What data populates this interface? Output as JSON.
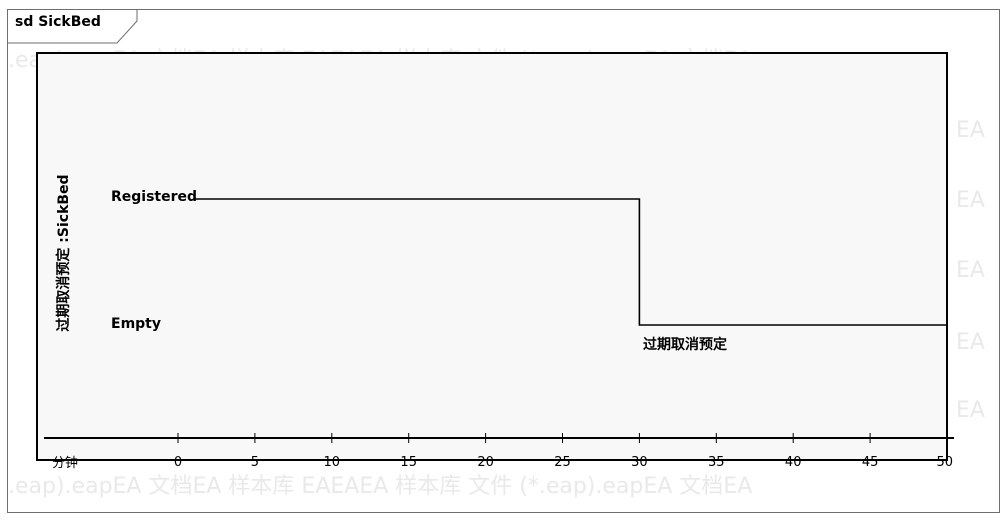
{
  "diagram": {
    "frame_label": "sd SickBed",
    "lifeline": "过期取消预定 :SickBed",
    "states": [
      "Registered",
      "Empty"
    ],
    "event_label": "过期取消预定",
    "unit": "分钟",
    "watermark": [
      ".eap).eapEA 文档EA 样本库  EAEAEA 样本库 文件 (*.eap).eapEA 文档EA",
      ".eap).eapEA 文档EA 样本库  EAEAEA 样本库 文件 (*.eap).eapEA 文档EA",
      "EA"
    ]
  },
  "chart_data": {
    "type": "line",
    "title": "",
    "xlabel": "分钟",
    "ylabel": "",
    "xlim": [
      0,
      50
    ],
    "x_ticks": [
      "0",
      "5",
      "10",
      "15",
      "20",
      "25",
      "30",
      "35",
      "40",
      "45",
      "50"
    ],
    "y_categories": [
      "Registered",
      "Empty"
    ],
    "series": [
      {
        "x": [
          0,
          30,
          30,
          50
        ],
        "y": [
          "Registered",
          "Registered",
          "Empty",
          "Empty"
        ]
      }
    ],
    "annotations": [
      {
        "x": 30,
        "y": "Empty",
        "text": "过期取消预定"
      }
    ]
  }
}
